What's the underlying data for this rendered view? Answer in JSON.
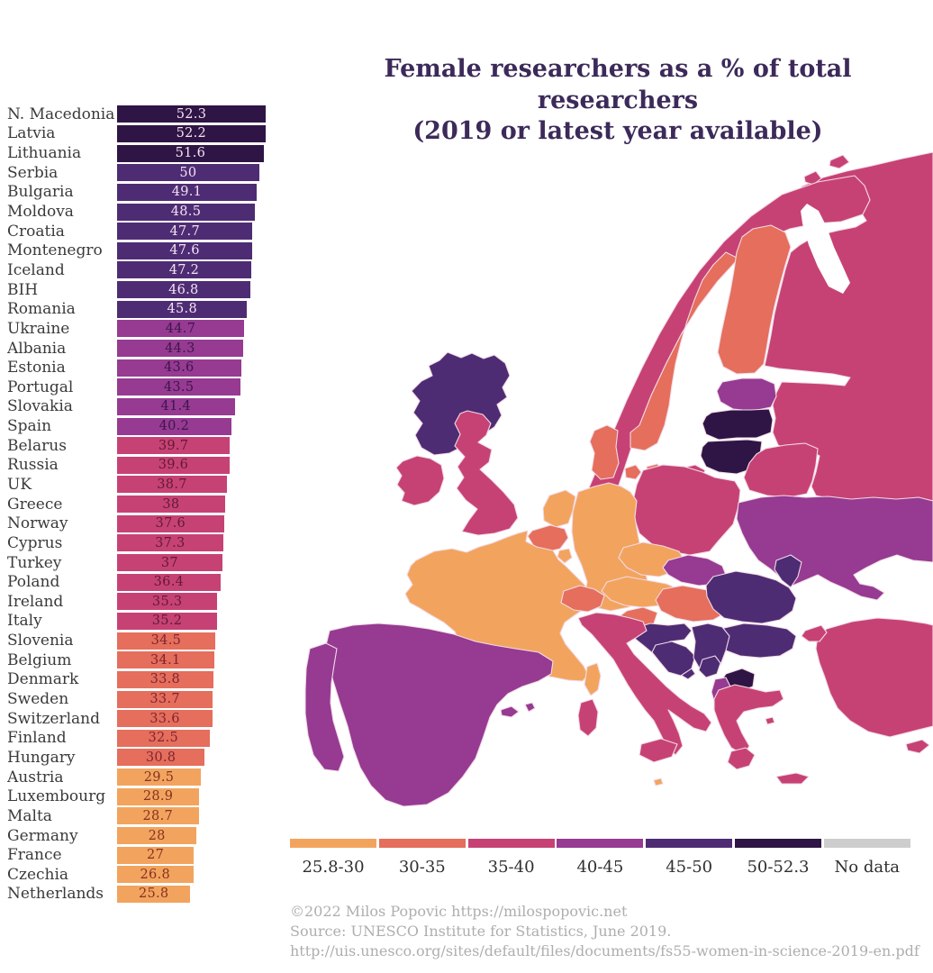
{
  "title": {
    "line1": "Female researchers as a % of total researchers",
    "line2": "(2019 or latest year available)"
  },
  "chart_data": {
    "type": "bar",
    "orientation": "horizontal",
    "title": "Female researchers as a % of total researchers (2019 or latest year available)",
    "xlabel": "",
    "ylabel": "",
    "xlim": [
      0,
      52.3
    ],
    "value_labels_shown": true,
    "categories": [
      "N. Macedonia",
      "Latvia",
      "Lithuania",
      "Serbia",
      "Bulgaria",
      "Moldova",
      "Croatia",
      "Montenegro",
      "Iceland",
      "BIH",
      "Romania",
      "Ukraine",
      "Albania",
      "Estonia",
      "Portugal",
      "Slovakia",
      "Spain",
      "Belarus",
      "Russia",
      "UK",
      "Greece",
      "Norway",
      "Cyprus",
      "Turkey",
      "Poland",
      "Ireland",
      "Italy",
      "Slovenia",
      "Belgium",
      "Denmark",
      "Sweden",
      "Switzerland",
      "Finland",
      "Hungary",
      "Austria",
      "Luxembourg",
      "Malta",
      "Germany",
      "France",
      "Czechia",
      "Netherlands"
    ],
    "values": [
      52.3,
      52.2,
      51.6,
      50,
      49.1,
      48.5,
      47.7,
      47.6,
      47.2,
      46.8,
      45.8,
      44.7,
      44.3,
      43.6,
      43.5,
      41.4,
      40.2,
      39.7,
      39.6,
      38.7,
      38,
      37.6,
      37.3,
      37,
      36.4,
      35.3,
      35.2,
      34.5,
      34.1,
      33.8,
      33.7,
      33.6,
      32.5,
      30.8,
      29.5,
      28.9,
      28.7,
      28,
      27,
      26.8,
      25.8
    ]
  },
  "legend": {
    "items": [
      {
        "label": "25.8-30",
        "color": "#F2A45F"
      },
      {
        "label": "30-35",
        "color": "#E56E5C"
      },
      {
        "label": "35-40",
        "color": "#C74274"
      },
      {
        "label": "40-45",
        "color": "#963A92"
      },
      {
        "label": "45-50",
        "color": "#4E2C74"
      },
      {
        "label": "50-52.3",
        "color": "#2F1545"
      },
      {
        "label": "No data",
        "color": "#CDCDCD"
      }
    ]
  },
  "map": {
    "type": "choropleth",
    "sea_color": "#ffffff",
    "border_color": "#f2dbe7",
    "no_data_color": "#CDCDCD"
  },
  "footer": {
    "line1": "©2022 Milos Popovic https://milospopovic.net",
    "line2": "Source: UNESCO Institute for Statistics, June 2019.",
    "line3": "http://uis.unesco.org/sites/default/files/documents/fs55-women-in-science-2019-en.pdf"
  }
}
